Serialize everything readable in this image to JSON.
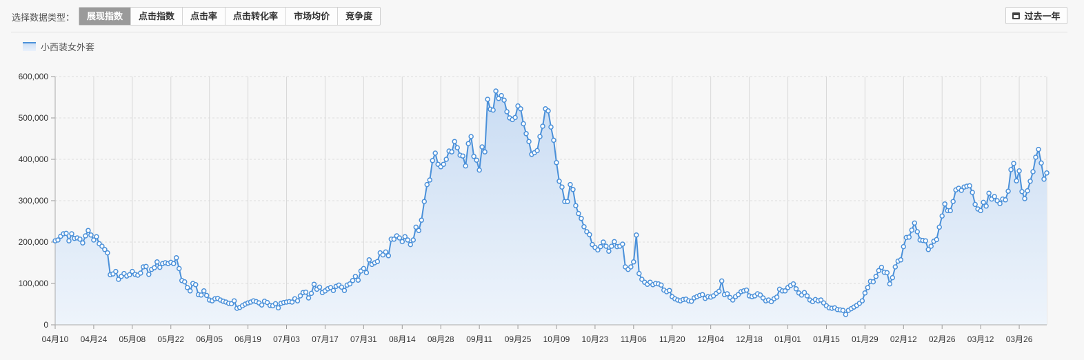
{
  "toolbar": {
    "type_label": "选择数据类型：",
    "tabs": [
      "展现指数",
      "点击指数",
      "点击率",
      "点击转化率",
      "市场均价",
      "竞争度"
    ],
    "active_tab": 0,
    "period_button": "过去一年"
  },
  "colors": {
    "line": "#4a90d9",
    "area_top": "#c9dcf3",
    "area_bottom": "#eef4fb",
    "marker_fill": "#ffffff",
    "active_tab_bg": "#9a9a9a"
  },
  "chart_data": {
    "type": "area",
    "title": "",
    "xlabel": "",
    "ylabel": "",
    "ylim": [
      0,
      600000
    ],
    "y_ticks": [
      "0",
      "100,000",
      "200,000",
      "300,000",
      "400,000",
      "500,000",
      "600,000"
    ],
    "x_tick_labels": [
      "04月10",
      "04月24",
      "05月08",
      "05月22",
      "06月05",
      "06月19",
      "07月03",
      "07月17",
      "07月31",
      "08月14",
      "08月28",
      "09月11",
      "09月25",
      "10月09",
      "10月23",
      "11月06",
      "11月20",
      "12月04",
      "12月18",
      "01月01",
      "01月15",
      "01月29",
      "02月12",
      "02月26",
      "03月12",
      "03月26"
    ],
    "x_tick_interval_days": 14,
    "grid": true,
    "legend_position": "top-left",
    "series": [
      {
        "name": "小西装女外套",
        "values": [
          203000,
          205000,
          214000,
          220000,
          221000,
          203000,
          220000,
          209000,
          210000,
          207000,
          198000,
          215000,
          228000,
          217000,
          205000,
          213000,
          196000,
          190000,
          182000,
          174000,
          121000,
          123000,
          129000,
          110000,
          117000,
          124000,
          118000,
          121000,
          129000,
          122000,
          120000,
          125000,
          140000,
          141000,
          122000,
          134000,
          138000,
          152000,
          139000,
          148000,
          150000,
          148000,
          151000,
          148000,
          162000,
          136000,
          107000,
          104000,
          90000,
          82000,
          100000,
          97000,
          73000,
          72000,
          82000,
          71000,
          60000,
          58000,
          63000,
          64000,
          60000,
          57000,
          55000,
          52000,
          51000,
          58000,
          40000,
          42000,
          46000,
          50000,
          53000,
          55000,
          58000,
          56000,
          53000,
          48000,
          57000,
          54000,
          47000,
          46000,
          51000,
          41000,
          52000,
          54000,
          55000,
          56000,
          55000,
          63000,
          58000,
          70000,
          78000,
          79000,
          65000,
          76000,
          98000,
          86000,
          91000,
          78000,
          82000,
          87000,
          90000,
          83000,
          93000,
          96000,
          91000,
          83000,
          96000,
          99000,
          107000,
          117000,
          108000,
          130000,
          136000,
          126000,
          157000,
          146000,
          150000,
          153000,
          174000,
          169000,
          176000,
          167000,
          207000,
          207000,
          215000,
          210000,
          201000,
          213000,
          205000,
          194000,
          205000,
          236000,
          228000,
          253000,
          298000,
          339000,
          350000,
          397000,
          415000,
          388000,
          382000,
          388000,
          400000,
          420000,
          418000,
          443000,
          428000,
          410000,
          408000,
          384000,
          438000,
          455000,
          407000,
          398000,
          374000,
          430000,
          418000,
          545000,
          521000,
          519000,
          565000,
          547000,
          554000,
          543000,
          515000,
          500000,
          496000,
          501000,
          529000,
          522000,
          486000,
          462000,
          443000,
          412000,
          416000,
          421000,
          455000,
          480000,
          522000,
          517000,
          478000,
          446000,
          392000,
          347000,
          333000,
          298000,
          298000,
          339000,
          327000,
          288000,
          269000,
          257000,
          237000,
          225000,
          218000,
          194000,
          187000,
          181000,
          189000,
          200000,
          190000,
          178000,
          190000,
          201000,
          189000,
          190000,
          195000,
          140000,
          134000,
          140000,
          152000,
          217000,
          124000,
          110000,
          103000,
          98000,
          103000,
          97000,
          100000,
          99000,
          96000,
          84000,
          80000,
          83000,
          68000,
          63000,
          60000,
          58000,
          61000,
          62000,
          58000,
          57000,
          65000,
          68000,
          71000,
          73000,
          64000,
          68000,
          67000,
          70000,
          76000,
          81000,
          106000,
          73000,
          75000,
          66000,
          60000,
          68000,
          73000,
          80000,
          82000,
          84000,
          70000,
          68000,
          70000,
          75000,
          72000,
          65000,
          58000,
          60000,
          56000,
          63000,
          67000,
          86000,
          82000,
          82000,
          90000,
          95000,
          99000,
          87000,
          77000,
          72000,
          78000,
          70000,
          60000,
          56000,
          61000,
          58000,
          60000,
          53000,
          46000,
          41000,
          40000,
          41000,
          37000,
          36000,
          35000,
          25000,
          35000,
          39000,
          43000,
          47000,
          52000,
          58000,
          77000,
          90000,
          105000,
          104000,
          117000,
          131000,
          139000,
          127000,
          126000,
          99000,
          114000,
          140000,
          154000,
          157000,
          189000,
          211000,
          212000,
          229000,
          246000,
          225000,
          205000,
          204000,
          203000,
          182000,
          190000,
          202000,
          206000,
          236000,
          263000,
          292000,
          276000,
          276000,
          298000,
          326000,
          330000,
          325000,
          333000,
          335000,
          336000,
          320000,
          291000,
          280000,
          276000,
          296000,
          287000,
          318000,
          304000,
          310000,
          300000,
          293000,
          304000,
          302000,
          323000,
          375000,
          390000,
          348000,
          372000,
          322000,
          305000,
          324000,
          347000,
          370000,
          405000,
          424000,
          391000,
          352000,
          367000
        ]
      }
    ]
  }
}
